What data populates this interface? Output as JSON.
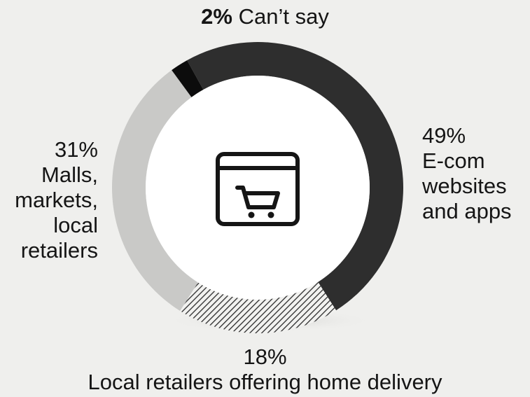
{
  "chart_data": {
    "type": "pie",
    "donut": true,
    "title": "",
    "center_icon": "shopping-cart-browser-icon",
    "slices": [
      {
        "label": "E-com websites and apps",
        "value": 49,
        "pct_text": "49%",
        "lines": [
          "E-com",
          "websites",
          "and apps"
        ],
        "color": "#2e2e2e",
        "fill": "solid"
      },
      {
        "label": "Local retailers offering home delivery",
        "value": 18,
        "pct_text": "18%",
        "lines": [
          "Local retailers offering home delivery"
        ],
        "color": "#3a3a3a",
        "fill": "hatched"
      },
      {
        "label": "Malls, markets, local retailers",
        "value": 31,
        "pct_text": "31%",
        "lines": [
          "Malls,",
          "markets,",
          "local",
          "retailers"
        ],
        "color": "#c9c9c7",
        "fill": "solid"
      },
      {
        "label": "Can’t say",
        "value": 2,
        "pct_text": "2%",
        "lines": [
          "Can’t say"
        ],
        "color": "#0c0c0c",
        "fill": "solid"
      }
    ]
  }
}
